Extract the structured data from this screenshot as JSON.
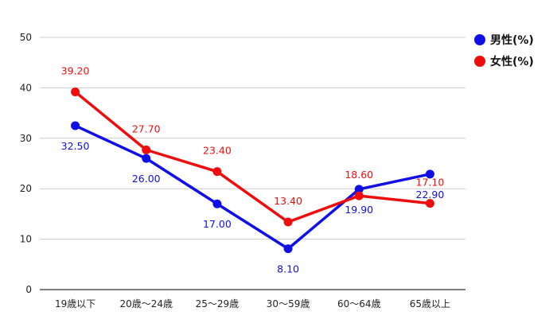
{
  "chart_data": {
    "type": "line",
    "categories": [
      "19歳以下",
      "20歳～24歳",
      "25～29歳",
      "30～59歳",
      "60～64歳",
      "65歳以上"
    ],
    "series": [
      {
        "name": "男性(%)",
        "color": "#0f0fe6",
        "values": [
          32.5,
          26.0,
          17.0,
          8.1,
          19.9,
          22.9
        ],
        "labels": [
          "32.50",
          "26.00",
          "17.00",
          "8.10",
          "19.90",
          "22.90"
        ],
        "label_pos": [
          "below",
          "below",
          "below",
          "below",
          "below",
          "below"
        ]
      },
      {
        "name": "女性(%)",
        "color": "#ee0d0d",
        "values": [
          39.2,
          27.7,
          23.4,
          13.4,
          18.6,
          17.1
        ],
        "labels": [
          "39.20",
          "27.70",
          "23.40",
          "13.40",
          "18.60",
          "17.10"
        ],
        "label_pos": [
          "above",
          "above",
          "above",
          "above",
          "above",
          "above"
        ]
      }
    ],
    "ylim": [
      0,
      50
    ],
    "yticks": [
      "0",
      "10",
      "20",
      "30",
      "40",
      "50"
    ],
    "grid": true,
    "legend_position": "top-right"
  }
}
